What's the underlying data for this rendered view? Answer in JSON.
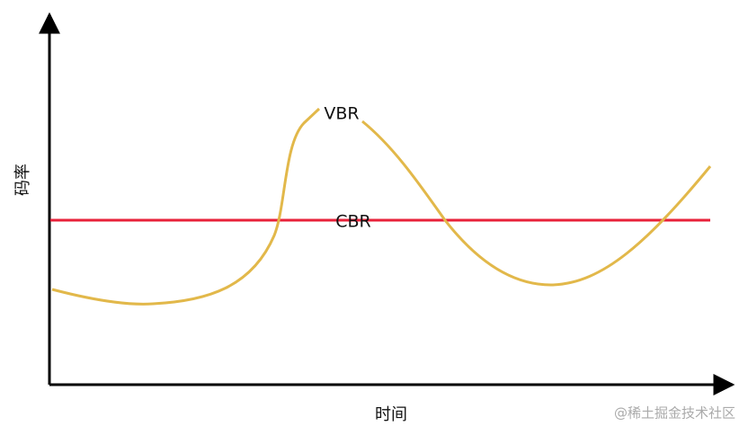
{
  "y_axis_label": "码率",
  "x_axis_label": "时间",
  "labels": {
    "vbr": "VBR",
    "cbr": "CBR"
  },
  "watermark": "@稀土掘金技术社区"
}
